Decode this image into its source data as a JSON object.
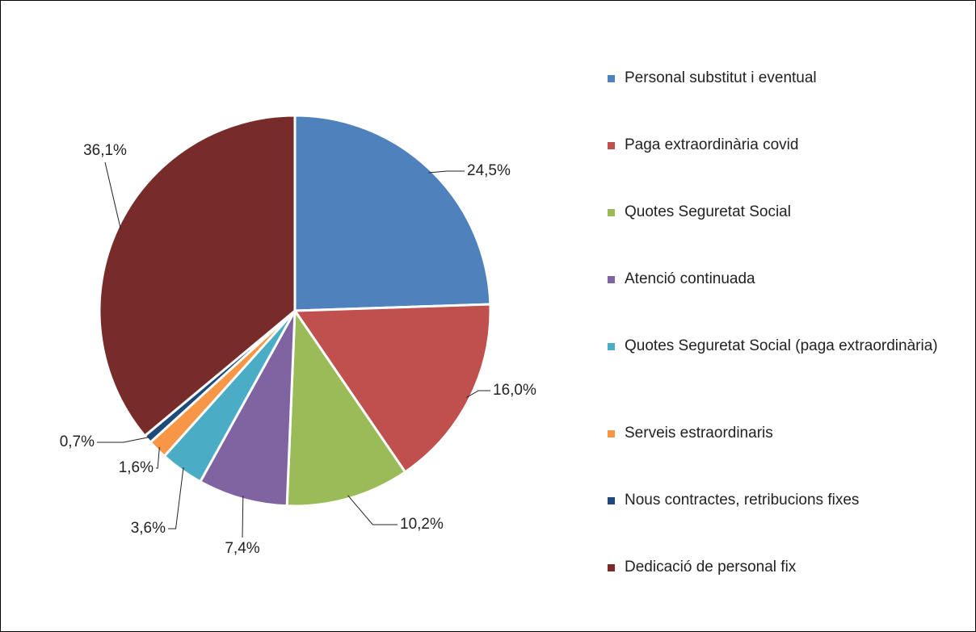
{
  "chart_data": {
    "type": "pie",
    "categories": [
      "Personal substitut i eventual",
      "Paga extraordinària covid",
      "Quotes Seguretat Social",
      "Atenció continuada",
      "Quotes Seguretat Social (paga extraordinària)",
      "Serveis estraordinaris",
      "Nous contractes, retribucions fixes",
      "Dedicació de personal fix"
    ],
    "values": [
      24.5,
      16.0,
      10.2,
      7.4,
      3.6,
      1.6,
      0.7,
      36.1
    ],
    "value_labels": [
      "24,5%",
      "16,0%",
      "10,2%",
      "7,4%",
      "3,6%",
      "1,6%",
      "0,7%",
      "36,1%"
    ],
    "colors": [
      "#4f81bd",
      "#c0504d",
      "#9bbb59",
      "#8064a2",
      "#4bacc6",
      "#f79646",
      "#1f497d",
      "#772c2a"
    ],
    "legend": "right"
  }
}
